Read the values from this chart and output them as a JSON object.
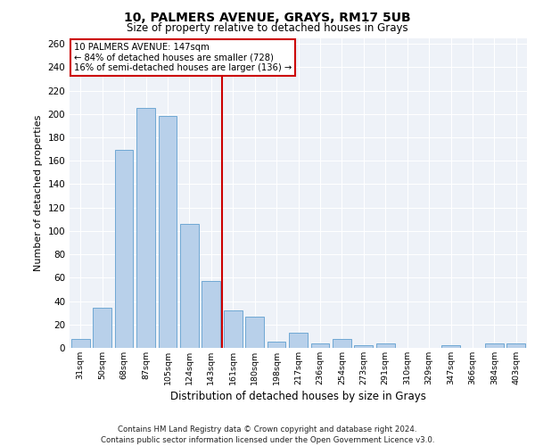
{
  "title1": "10, PALMERS AVENUE, GRAYS, RM17 5UB",
  "title2": "Size of property relative to detached houses in Grays",
  "xlabel": "Distribution of detached houses by size in Grays",
  "ylabel": "Number of detached properties",
  "categories": [
    "31sqm",
    "50sqm",
    "68sqm",
    "87sqm",
    "105sqm",
    "124sqm",
    "143sqm",
    "161sqm",
    "180sqm",
    "198sqm",
    "217sqm",
    "236sqm",
    "254sqm",
    "273sqm",
    "291sqm",
    "310sqm",
    "329sqm",
    "347sqm",
    "366sqm",
    "384sqm",
    "403sqm"
  ],
  "values": [
    8,
    34,
    169,
    205,
    198,
    106,
    57,
    32,
    27,
    5,
    13,
    4,
    8,
    2,
    4,
    0,
    0,
    2,
    0,
    4,
    4
  ],
  "bar_color": "#b8d0ea",
  "bar_edge_color": "#6fa8d4",
  "vline_x_idx": 6.5,
  "vline_color": "#cc0000",
  "annotation_text": "10 PALMERS AVENUE: 147sqm\n← 84% of detached houses are smaller (728)\n16% of semi-detached houses are larger (136) →",
  "annotation_box_color": "#ffffff",
  "annotation_box_edge": "#cc0000",
  "ylim": [
    0,
    265
  ],
  "yticks": [
    0,
    20,
    40,
    60,
    80,
    100,
    120,
    140,
    160,
    180,
    200,
    220,
    240,
    260
  ],
  "background_color": "#eef2f8",
  "footer1": "Contains HM Land Registry data © Crown copyright and database right 2024.",
  "footer2": "Contains public sector information licensed under the Open Government Licence v3.0."
}
